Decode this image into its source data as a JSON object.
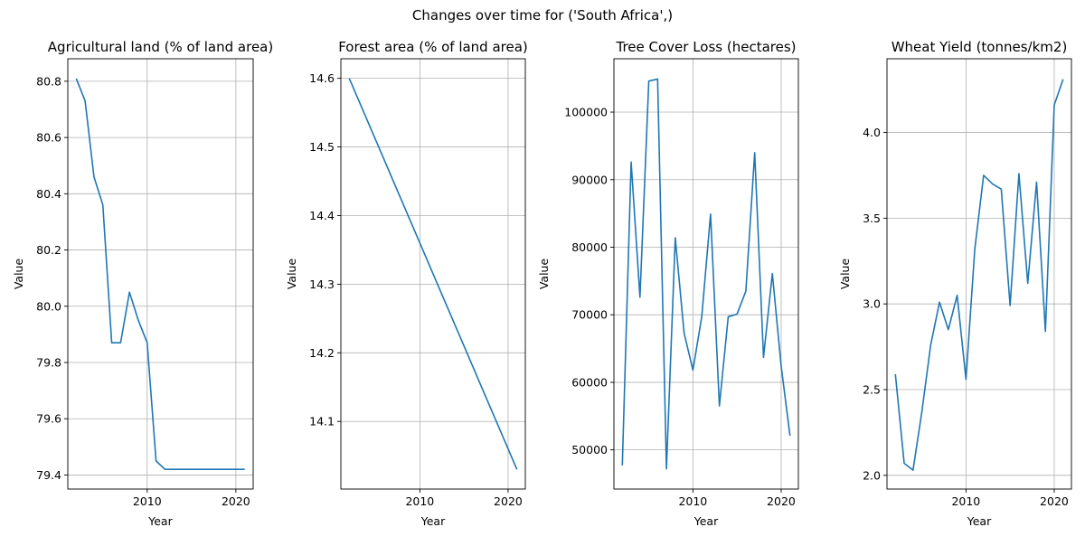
{
  "figure": {
    "suptitle": "Changes over time for ('South Africa',)"
  },
  "colors": {
    "line": "#1f77b4",
    "grid": "#b0b0b0",
    "axes": "#000000"
  },
  "chart_data": [
    {
      "type": "line",
      "title": "Agricultural land (% of land area)",
      "xlabel": "Year",
      "ylabel": "Value",
      "xlim": [
        2001.05,
        2021.95
      ],
      "ylim": [
        79.35,
        80.88
      ],
      "xticks": [
        2010,
        2020
      ],
      "yticks": [
        79.4,
        79.6,
        79.8,
        80.0,
        80.2,
        80.4,
        80.6,
        80.8
      ],
      "ytick_labels": [
        "79.4",
        "79.6",
        "79.8",
        "80.0",
        "80.2",
        "80.4",
        "80.6",
        "80.8"
      ],
      "grid": true,
      "series": [
        {
          "x": [
            2002,
            2003,
            2004,
            2005,
            2006,
            2007,
            2008,
            2009,
            2010,
            2011,
            2012,
            2013,
            2014,
            2015,
            2016,
            2017,
            2018,
            2019,
            2020,
            2021
          ],
          "values": [
            80.81,
            80.73,
            80.46,
            80.36,
            79.87,
            79.87,
            80.05,
            79.95,
            79.87,
            79.45,
            79.42,
            79.42,
            79.42,
            79.42,
            79.42,
            79.42,
            79.42,
            79.42,
            79.42,
            79.42
          ]
        }
      ]
    },
    {
      "type": "line",
      "title": "Forest area (% of land area)",
      "xlabel": "Year",
      "ylabel": "Value",
      "xlim": [
        2001.05,
        2021.95
      ],
      "ylim": [
        14.0015,
        14.6285
      ],
      "xticks": [
        2010,
        2020
      ],
      "yticks": [
        14.1,
        14.2,
        14.3,
        14.4,
        14.5,
        14.6
      ],
      "ytick_labels": [
        "14.1",
        "14.2",
        "14.3",
        "14.4",
        "14.5",
        "14.6"
      ],
      "grid": true,
      "series": [
        {
          "x": [
            2002,
            2003,
            2004,
            2005,
            2006,
            2007,
            2008,
            2009,
            2010,
            2011,
            2012,
            2013,
            2014,
            2015,
            2016,
            2017,
            2018,
            2019,
            2020,
            2021
          ],
          "values": [
            14.6,
            14.57,
            14.54,
            14.51,
            14.48,
            14.45,
            14.42,
            14.39,
            14.36,
            14.33,
            14.3,
            14.27,
            14.24,
            14.21,
            14.18,
            14.15,
            14.12,
            14.09,
            14.06,
            14.03
          ]
        }
      ]
    },
    {
      "type": "line",
      "title": "Tree Cover Loss (hectares)",
      "xlabel": "Year",
      "ylabel": "Value",
      "xlim": [
        2001.05,
        2021.95
      ],
      "ylim": [
        44200,
        107900
      ],
      "xticks": [
        2010,
        2020
      ],
      "yticks": [
        50000,
        60000,
        70000,
        80000,
        90000,
        100000
      ],
      "ytick_labels": [
        "50000",
        "60000",
        "70000",
        "80000",
        "90000",
        "100000"
      ],
      "grid": true,
      "series": [
        {
          "x": [
            2002,
            2003,
            2004,
            2005,
            2006,
            2007,
            2008,
            2009,
            2010,
            2011,
            2012,
            2013,
            2014,
            2015,
            2016,
            2017,
            2018,
            2019,
            2020,
            2021
          ],
          "values": [
            47700,
            92600,
            72600,
            104600,
            104900,
            47200,
            81400,
            67300,
            61800,
            69700,
            84900,
            56500,
            69700,
            70100,
            73500,
            94000,
            63700,
            76100,
            62400,
            52100
          ]
        }
      ]
    },
    {
      "type": "line",
      "title": "Wheat Yield (tonnes/km2)",
      "xlabel": "Year",
      "ylabel": "Value",
      "xlim": [
        2001.05,
        2021.95
      ],
      "ylim": [
        1.92,
        4.43
      ],
      "xticks": [
        2010,
        2020
      ],
      "yticks": [
        2.0,
        2.5,
        3.0,
        3.5,
        4.0
      ],
      "ytick_labels": [
        "2.0",
        "2.5",
        "3.0",
        "3.5",
        "4.0"
      ],
      "grid": true,
      "series": [
        {
          "x": [
            2002,
            2003,
            2004,
            2005,
            2006,
            2007,
            2008,
            2009,
            2010,
            2011,
            2012,
            2013,
            2014,
            2015,
            2016,
            2017,
            2018,
            2019,
            2020,
            2021
          ],
          "values": [
            2.59,
            2.07,
            2.03,
            2.37,
            2.76,
            3.01,
            2.85,
            3.05,
            2.56,
            3.32,
            3.75,
            3.7,
            3.67,
            2.99,
            3.76,
            3.12,
            3.71,
            2.84,
            4.16,
            4.31
          ]
        }
      ]
    }
  ]
}
